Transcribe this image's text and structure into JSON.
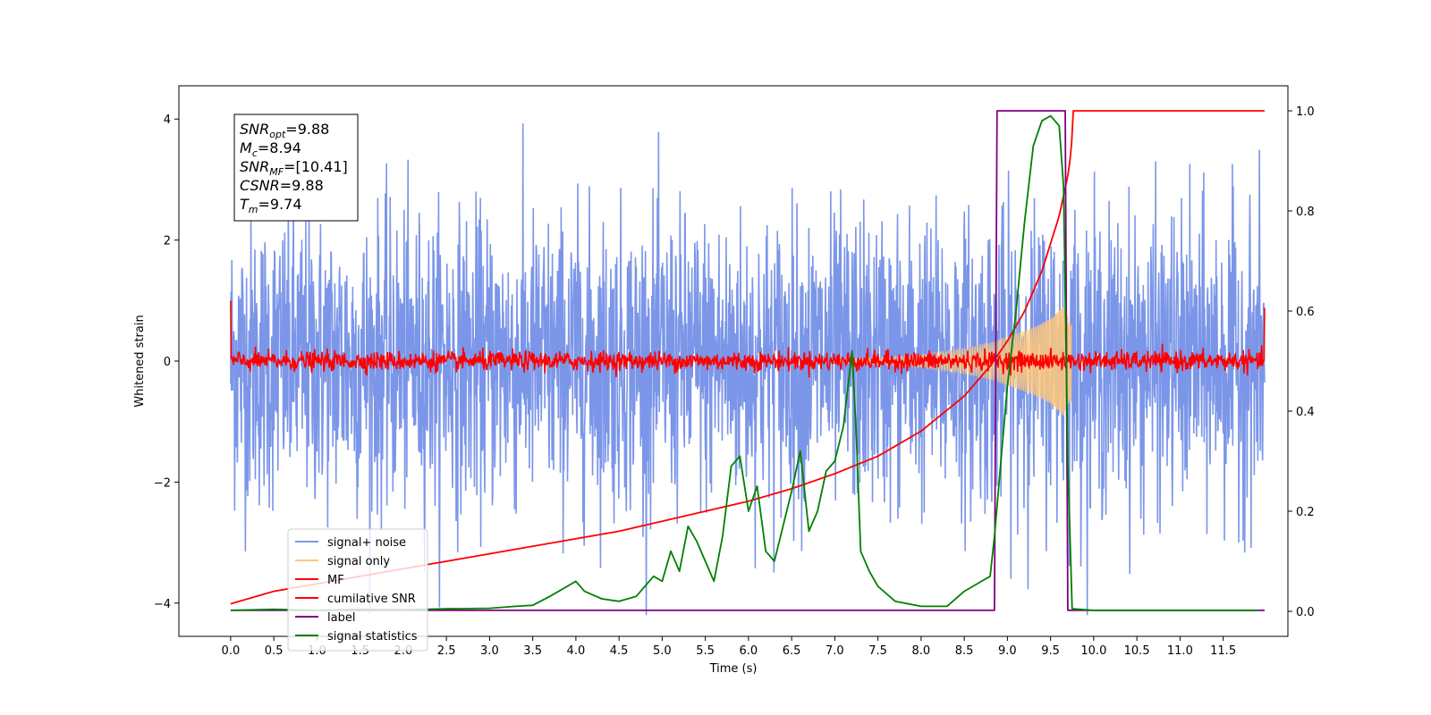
{
  "chart_data": {
    "type": "line",
    "xlabel": "Time (s)",
    "ylabel": "Whitened strain",
    "xlim": [
      -0.6,
      12.25
    ],
    "ylim": [
      -4.55,
      4.55
    ],
    "y2lim": [
      -0.05,
      1.05
    ],
    "x_ticks": [
      "0.0",
      "0.5",
      "1.0",
      "1.5",
      "2.0",
      "2.5",
      "3.0",
      "3.5",
      "4.0",
      "4.5",
      "5.0",
      "5.5",
      "6.0",
      "6.5",
      "7.0",
      "7.5",
      "8.0",
      "8.5",
      "9.0",
      "9.5",
      "10.0",
      "10.5",
      "11.0",
      "11.5"
    ],
    "y_ticks": [
      "4",
      "2",
      "0",
      "−2",
      "−4"
    ],
    "y2_ticks": [
      "1.0",
      "0.8",
      "0.6",
      "0.4",
      "0.2",
      "0.0"
    ],
    "grid": false,
    "legend_position": "lower-left",
    "info_box": [
      {
        "sym": "SNR",
        "sub": "opt",
        "val": "=9.88"
      },
      {
        "sym": "M",
        "sub": "c",
        "val": "=8.94"
      },
      {
        "sym": "SNR",
        "sub": "MF",
        "val": "=[10.41]"
      },
      {
        "sym": "CSNR",
        "sub": "",
        "val": "=9.88"
      },
      {
        "sym": "T",
        "sub": "m",
        "val": "=9.74"
      }
    ],
    "series": [
      {
        "name": "signal+ noise",
        "color": "#7b96e8",
        "axis": "left",
        "kind": "noise",
        "x_range": [
          0,
          11.98
        ],
        "amplitude_typical": 1.2,
        "amplitude_peak": 4.2
      },
      {
        "name": "signal only",
        "color": "#ffc87a",
        "axis": "left",
        "kind": "chirp",
        "x_range": [
          7.0,
          9.74
        ],
        "envelope_x": [
          7.0,
          7.5,
          8.0,
          8.5,
          8.8,
          9.0,
          9.3,
          9.5,
          9.65,
          9.74
        ],
        "envelope_y": [
          0.03,
          0.06,
          0.1,
          0.2,
          0.3,
          0.4,
          0.55,
          0.7,
          0.9,
          0.6
        ]
      },
      {
        "name": "MF",
        "color": "#ff0000",
        "axis": "left",
        "kind": "mf",
        "x_range": [
          0,
          11.98
        ],
        "amplitude_typical": 0.08,
        "end_values": [
          1.0,
          0.88
        ]
      },
      {
        "name": "cumilative SNR",
        "color": "#ff0000",
        "axis": "right",
        "x": [
          0,
          0.5,
          1.0,
          1.5,
          2.0,
          2.5,
          3.0,
          3.5,
          4.0,
          4.5,
          5.0,
          5.5,
          6.0,
          6.5,
          7.0,
          7.5,
          8.0,
          8.5,
          8.8,
          9.0,
          9.2,
          9.4,
          9.6,
          9.7,
          9.74,
          9.76,
          11.98
        ],
        "y": [
          0.015,
          0.04,
          0.055,
          0.07,
          0.085,
          0.1,
          0.115,
          0.13,
          0.145,
          0.16,
          0.18,
          0.2,
          0.22,
          0.245,
          0.275,
          0.31,
          0.36,
          0.43,
          0.49,
          0.54,
          0.6,
          0.68,
          0.79,
          0.87,
          0.92,
          1.0,
          1.0
        ]
      },
      {
        "name": "label",
        "color": "#800080",
        "axis": "right",
        "x": [
          0,
          8.85,
          8.88,
          9.67,
          9.7,
          11.98
        ],
        "y": [
          0.002,
          0.002,
          1.0,
          1.0,
          0.002,
          0.002
        ]
      },
      {
        "name": "signal statistics",
        "color": "#008000",
        "axis": "right",
        "x": [
          0,
          0.5,
          1.0,
          1.5,
          2.0,
          2.5,
          3.0,
          3.3,
          3.5,
          3.7,
          3.9,
          4.0,
          4.1,
          4.3,
          4.5,
          4.7,
          4.9,
          5.0,
          5.1,
          5.2,
          5.3,
          5.4,
          5.5,
          5.6,
          5.7,
          5.8,
          5.9,
          6.0,
          6.1,
          6.2,
          6.3,
          6.4,
          6.5,
          6.6,
          6.7,
          6.8,
          6.9,
          7.0,
          7.1,
          7.2,
          7.25,
          7.3,
          7.4,
          7.5,
          7.7,
          8.0,
          8.3,
          8.5,
          8.7,
          8.8,
          8.85,
          8.9,
          9.0,
          9.1,
          9.2,
          9.3,
          9.4,
          9.5,
          9.6,
          9.65,
          9.7,
          9.75,
          10.0,
          11.0,
          11.9
        ],
        "y": [
          0.002,
          0.004,
          0.002,
          0.004,
          0.003,
          0.005,
          0.006,
          0.01,
          0.012,
          0.03,
          0.05,
          0.06,
          0.04,
          0.025,
          0.02,
          0.03,
          0.07,
          0.06,
          0.12,
          0.08,
          0.17,
          0.14,
          0.1,
          0.06,
          0.15,
          0.29,
          0.31,
          0.2,
          0.25,
          0.12,
          0.1,
          0.17,
          0.24,
          0.32,
          0.16,
          0.2,
          0.28,
          0.3,
          0.37,
          0.52,
          0.35,
          0.12,
          0.08,
          0.05,
          0.02,
          0.01,
          0.01,
          0.04,
          0.06,
          0.07,
          0.15,
          0.25,
          0.45,
          0.6,
          0.78,
          0.93,
          0.98,
          0.99,
          0.97,
          0.85,
          0.3,
          0.005,
          0.002,
          0.002,
          0.002
        ]
      }
    ]
  }
}
